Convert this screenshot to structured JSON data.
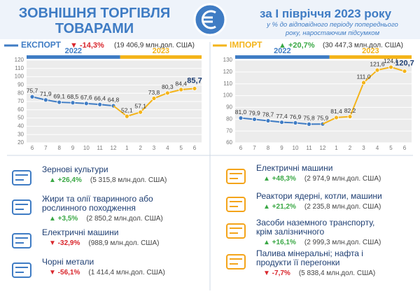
{
  "header": {
    "title": "ЗОВНІШНЯ ТОРГІВЛЯ ТОВАРАМИ",
    "period": "за І півріччя 2023 року",
    "subtitle": "у % до відповідного періоду попереднього року, наростаючим підсумком"
  },
  "chart_data": [
    {
      "type": "line",
      "title": "ЕКСПОРТ",
      "title_color": "#3f7cc4",
      "change": "▼ -14,3%",
      "change_color": "#d9262c",
      "amount": "(19 406,9 млн.дол. США)",
      "categories": [
        "6",
        "7",
        "8",
        "9",
        "10",
        "11",
        "12",
        "1",
        "2",
        "3",
        "4",
        "5",
        "6"
      ],
      "series": [
        {
          "name": "2022",
          "color": "#3f7cc4",
          "values": [
            75.7,
            71.9,
            69.1,
            68.5,
            67.6,
            66.4,
            64.8,
            null,
            null,
            null,
            null,
            null,
            null
          ],
          "value_labels": [
            "75,7",
            "71,9",
            "69,1",
            "68,5",
            "67,6",
            "66,4",
            "64,8",
            null,
            null,
            null,
            null,
            null,
            null
          ]
        },
        {
          "name": "2023",
          "color": "#f4b41a",
          "values": [
            null,
            null,
            null,
            null,
            null,
            null,
            null,
            52.1,
            57.1,
            73.8,
            80.3,
            84.4,
            85.7
          ],
          "value_labels": [
            null,
            null,
            null,
            null,
            null,
            null,
            null,
            "52,1",
            "57,1",
            "73,8",
            "80,3",
            "84,4",
            "85,7"
          ]
        }
      ],
      "ylim": [
        20,
        120
      ],
      "yticks": [
        20,
        30,
        40,
        50,
        60,
        70,
        80,
        90,
        100,
        110,
        120
      ],
      "grid": true
    },
    {
      "type": "line",
      "title": "ІМПОРТ",
      "title_color": "#f4b41a",
      "change": "▲ +20,7%",
      "change_color": "#3aa845",
      "amount": "(30 447,3 млн.дол. США)",
      "categories": [
        "6",
        "7",
        "8",
        "9",
        "10",
        "11",
        "12",
        "1",
        "2",
        "3",
        "4",
        "5",
        "6"
      ],
      "series": [
        {
          "name": "2022",
          "color": "#3f7cc4",
          "values": [
            81.0,
            79.9,
            78.7,
            77.4,
            76.9,
            75.8,
            75.9,
            null,
            null,
            null,
            null,
            null,
            null
          ],
          "value_labels": [
            "81,0",
            "79,9",
            "78,7",
            "77,4",
            "76,9",
            "75,8",
            "75,9",
            null,
            null,
            null,
            null,
            null,
            null
          ]
        },
        {
          "name": "2023",
          "color": "#f4b41a",
          "values": [
            null,
            null,
            null,
            null,
            null,
            null,
            null,
            81.4,
            82.2,
            111.0,
            121.6,
            124.1,
            120.7
          ],
          "value_labels": [
            null,
            null,
            null,
            null,
            null,
            null,
            null,
            "81,4",
            "82,2",
            "111,0",
            "121,6",
            "124,1",
            "120,7"
          ]
        }
      ],
      "ylim": [
        60,
        130
      ],
      "yticks": [
        60,
        70,
        80,
        90,
        100,
        110,
        120,
        130
      ],
      "grid": true
    }
  ],
  "export_products": [
    {
      "name": "Зернові культури",
      "change": "▲ +26,4%",
      "color": "#3aa845",
      "amount": "(5 315,8 млн.дол. США)"
    },
    {
      "name": "Жири та олії тваринного або рослинного походження",
      "change": "▲ +3,5%",
      "color": "#3aa845",
      "amount": "(2 850,2 млн.дол. США)"
    },
    {
      "name": "Електричні машини",
      "change": "▼ -32,9%",
      "color": "#d9262c",
      "amount": "(988,9 млн.дол. США)"
    },
    {
      "name": "Чорні метали",
      "change": "▼ -56,1%",
      "color": "#d9262c",
      "amount": "(1 414,4 млн.дол. США)"
    }
  ],
  "import_products": [
    {
      "name": "Електричні машини",
      "change": "▲ +48,3%",
      "color": "#3aa845",
      "amount": "(2 974,9 млн.дол. США)"
    },
    {
      "name": "Реактори ядерні, котли, машини",
      "change": "▲ +21,2%",
      "color": "#3aa845",
      "amount": "(2 235,8 млн.дол. США)"
    },
    {
      "name": "Засоби наземного транспорту, крім залізничного",
      "change": "▲ +16,1%",
      "color": "#3aa845",
      "amount": "(2 999,3 млн.дол. США)"
    },
    {
      "name": "Палива мінеральні; нафта і продукти її перегонки",
      "change": "▼ -7,7%",
      "color": "#d9262c",
      "amount": "(5 838,4 млн.дол. США)"
    }
  ]
}
